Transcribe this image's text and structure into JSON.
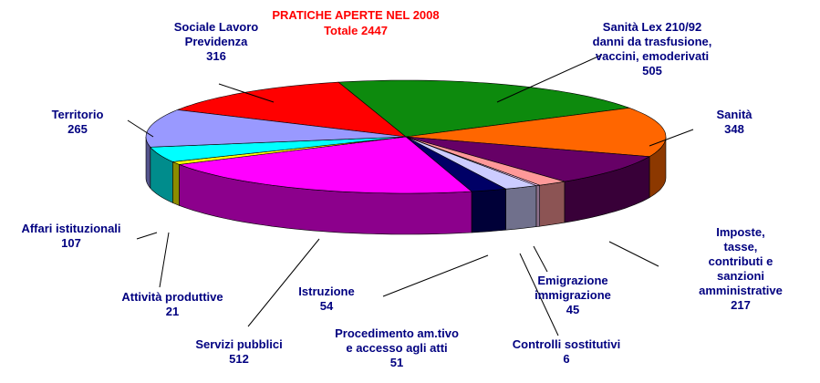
{
  "chart_data": {
    "type": "pie",
    "title": "PRATICHE APERTE NEL 2008",
    "subtitle": "Totale 2447",
    "categories": [
      "Sociale Lavoro\nPrevidenza",
      "Sanità Lex 210/92\ndanni da trasfusione,\nvaccini, emoderivati",
      "Sanità",
      "Imposte, tasse,\ncontributi e sanzioni\namministrative",
      "Emigrazione\nimmigrazione",
      "Controlli sostitutivi",
      "Procedimento am.tivo\ne accesso agli atti",
      "Istruzione",
      "Servizi pubblici",
      "Attività produttive",
      "Affari istituzionali",
      "Territorio"
    ],
    "values": [
      316,
      505,
      348,
      217,
      45,
      6,
      51,
      54,
      512,
      21,
      107,
      265
    ],
    "colors": [
      "#ff0000",
      "#0d8a0d",
      "#ff6600",
      "#660066",
      "#ff9999",
      "#ffccff",
      "#ccccff",
      "#000066",
      "#ff00ff",
      "#ffff00",
      "#00ffff",
      "#9999ff"
    ]
  }
}
